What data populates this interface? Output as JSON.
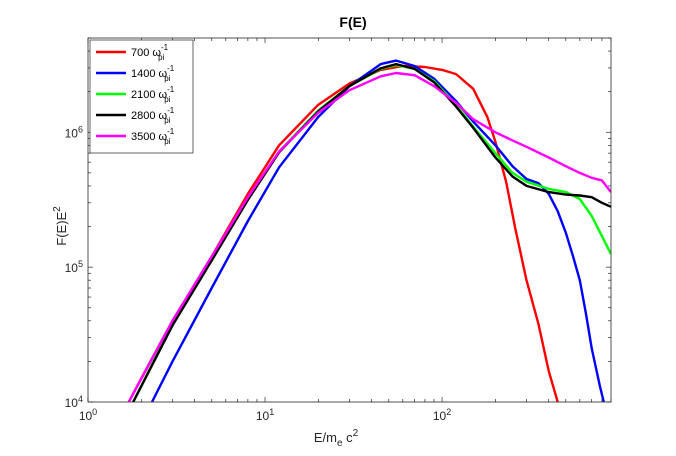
{
  "chart_data": {
    "type": "line",
    "title": "F(E)",
    "xlabel": {
      "base": "E/m",
      "sub": "e",
      "mid": " c",
      "sup": "2"
    },
    "ylabel": {
      "base": "F(E)E",
      "sup": "2"
    },
    "x_scale": "log",
    "y_scale": "log",
    "xlim": [
      1,
      900
    ],
    "ylim": [
      10000,
      5000000
    ],
    "x_ticks": [
      {
        "value": 1,
        "base": "10",
        "exp": "0"
      },
      {
        "value": 10,
        "base": "10",
        "exp": "1"
      },
      {
        "value": 100,
        "base": "10",
        "exp": "2"
      }
    ],
    "y_ticks": [
      {
        "value": 10000,
        "base": "10",
        "exp": "4"
      },
      {
        "value": 100000,
        "base": "10",
        "exp": "5"
      },
      {
        "value": 1000000,
        "base": "10",
        "exp": "6"
      }
    ],
    "legend_position": "top-left",
    "series": [
      {
        "name": "700 ω_pi^-1",
        "num": "700",
        "sym": "ω",
        "sub": "pi",
        "sup": "-1",
        "color": "#ff0000",
        "points": [
          [
            1.7,
            10000
          ],
          [
            2,
            15000
          ],
          [
            3,
            40000
          ],
          [
            5,
            120000
          ],
          [
            8,
            350000
          ],
          [
            12,
            800000
          ],
          [
            20,
            1600000
          ],
          [
            30,
            2300000
          ],
          [
            45,
            2900000
          ],
          [
            60,
            3100000
          ],
          [
            80,
            3050000
          ],
          [
            100,
            2900000
          ],
          [
            120,
            2700000
          ],
          [
            150,
            2100000
          ],
          [
            180,
            1300000
          ],
          [
            200,
            850000
          ],
          [
            230,
            430000
          ],
          [
            260,
            190000
          ],
          [
            300,
            80000
          ],
          [
            350,
            38000
          ],
          [
            400,
            17000
          ],
          [
            450,
            10000
          ]
        ]
      },
      {
        "name": "1400 ω_pi^-1",
        "num": "1400",
        "sym": "ω",
        "sub": "pi",
        "sup": "-1",
        "color": "#0000ff",
        "points": [
          [
            2.3,
            10000
          ],
          [
            3,
            20000
          ],
          [
            5,
            70000
          ],
          [
            8,
            220000
          ],
          [
            12,
            550000
          ],
          [
            20,
            1300000
          ],
          [
            30,
            2200000
          ],
          [
            45,
            3200000
          ],
          [
            55,
            3400000
          ],
          [
            70,
            3100000
          ],
          [
            90,
            2500000
          ],
          [
            120,
            1700000
          ],
          [
            150,
            1200000
          ],
          [
            200,
            800000
          ],
          [
            250,
            560000
          ],
          [
            300,
            450000
          ],
          [
            350,
            420000
          ],
          [
            400,
            350000
          ],
          [
            450,
            260000
          ],
          [
            500,
            180000
          ],
          [
            550,
            120000
          ],
          [
            600,
            80000
          ],
          [
            650,
            45000
          ],
          [
            700,
            25000
          ],
          [
            780,
            13000
          ],
          [
            820,
            10000
          ]
        ]
      },
      {
        "name": "2100 ω_pi^-1",
        "num": "2100",
        "sym": "ω",
        "sub": "pi",
        "sup": "-1",
        "color": "#00ff00",
        "points": [
          [
            1.8,
            10000
          ],
          [
            3,
            38000
          ],
          [
            5,
            115000
          ],
          [
            8,
            320000
          ],
          [
            12,
            720000
          ],
          [
            20,
            1450000
          ],
          [
            30,
            2200000
          ],
          [
            45,
            2950000
          ],
          [
            55,
            3150000
          ],
          [
            70,
            2950000
          ],
          [
            90,
            2400000
          ],
          [
            120,
            1600000
          ],
          [
            150,
            1100000
          ],
          [
            200,
            700000
          ],
          [
            250,
            500000
          ],
          [
            300,
            430000
          ],
          [
            400,
            380000
          ],
          [
            500,
            360000
          ],
          [
            600,
            320000
          ],
          [
            700,
            240000
          ],
          [
            800,
            170000
          ],
          [
            900,
            125000
          ]
        ]
      },
      {
        "name": "2800 ω_pi^-1",
        "num": "2800",
        "sym": "ω",
        "sub": "pi",
        "sup": "-1",
        "color": "#000000",
        "points": [
          [
            1.8,
            10000
          ],
          [
            3,
            37000
          ],
          [
            5,
            112000
          ],
          [
            8,
            315000
          ],
          [
            12,
            710000
          ],
          [
            20,
            1430000
          ],
          [
            30,
            2200000
          ],
          [
            45,
            2980000
          ],
          [
            55,
            3200000
          ],
          [
            70,
            2950000
          ],
          [
            90,
            2350000
          ],
          [
            120,
            1550000
          ],
          [
            150,
            1080000
          ],
          [
            200,
            650000
          ],
          [
            250,
            470000
          ],
          [
            300,
            400000
          ],
          [
            400,
            360000
          ],
          [
            500,
            345000
          ],
          [
            600,
            340000
          ],
          [
            700,
            330000
          ],
          [
            800,
            300000
          ],
          [
            900,
            280000
          ]
        ]
      },
      {
        "name": "3500 ω_pi^-1",
        "num": "3500",
        "sym": "ω",
        "sub": "pi",
        "sup": "-1",
        "color": "#ff00ff",
        "points": [
          [
            1.7,
            10000
          ],
          [
            3,
            40000
          ],
          [
            5,
            120000
          ],
          [
            8,
            330000
          ],
          [
            12,
            720000
          ],
          [
            20,
            1400000
          ],
          [
            30,
            2050000
          ],
          [
            45,
            2600000
          ],
          [
            55,
            2750000
          ],
          [
            70,
            2650000
          ],
          [
            90,
            2200000
          ],
          [
            120,
            1650000
          ],
          [
            150,
            1250000
          ],
          [
            200,
            1000000
          ],
          [
            250,
            870000
          ],
          [
            300,
            780000
          ],
          [
            400,
            650000
          ],
          [
            500,
            560000
          ],
          [
            600,
            500000
          ],
          [
            700,
            460000
          ],
          [
            800,
            440000
          ],
          [
            900,
            360000
          ]
        ]
      }
    ]
  }
}
